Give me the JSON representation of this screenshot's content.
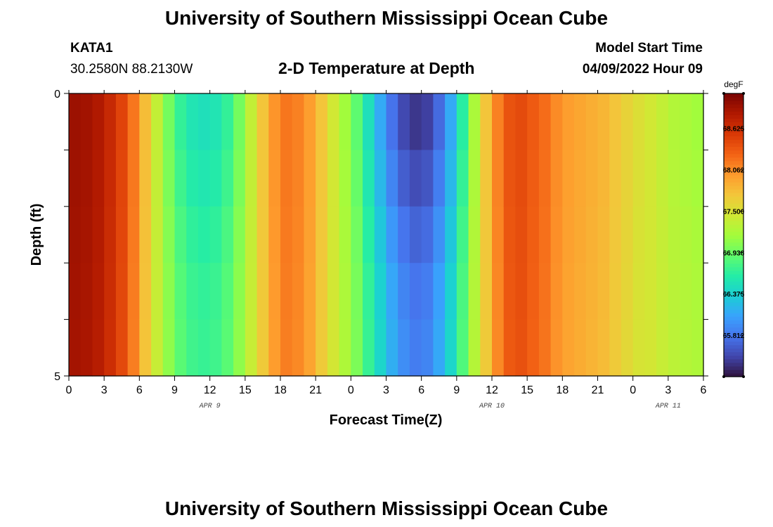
{
  "header": {
    "title": "University of Southern Mississippi Ocean Cube",
    "station_id": "KATA1",
    "coords": "30.2580N  88.2130W",
    "model_label": "Model Start Time",
    "model_time": "04/09/2022 Hour 09",
    "subtitle": "2-D Temperature at Depth"
  },
  "footer": {
    "title": "University of Southern Mississippi Ocean Cube"
  },
  "chart_data": {
    "type": "heatmap",
    "title": "2-D Temperature at Depth",
    "xlabel": "Forecast Time(Z)",
    "ylabel": "Depth (ft)",
    "x_tick_labels": [
      "0",
      "3",
      "6",
      "9",
      "12",
      "15",
      "18",
      "21",
      "0",
      "3",
      "6",
      "9",
      "12",
      "15",
      "18",
      "21",
      "0",
      "3",
      "6"
    ],
    "date_labels": [
      {
        "label": "APR 9",
        "at_hour": 12
      },
      {
        "label": "APR 10",
        "at_hour": 36
      },
      {
        "label": "APR 11",
        "at_hour": 51
      }
    ],
    "y_tick_labels": [
      "0",
      "5"
    ],
    "xlim": [
      0,
      54
    ],
    "ylim": [
      0,
      5
    ],
    "colorbar": {
      "unit": "degF",
      "tick_labels": [
        "68.625",
        "68.062",
        "67.500",
        "66.938",
        "66.375",
        "65.812"
      ],
      "range": [
        65.25,
        69.1
      ],
      "colors": [
        "#30123b",
        "#4145ab",
        "#4675ed",
        "#39a2fc",
        "#1bcfd4",
        "#24eca6",
        "#61fc6c",
        "#a4fc3b",
        "#d1e834",
        "#f3c63a",
        "#fe9b2d",
        "#f36315",
        "#d93806",
        "#b11901",
        "#7a0402"
      ]
    },
    "series": [
      {
        "name": "temperature",
        "time_hours": [
          0,
          1,
          2,
          3,
          4,
          5,
          6,
          7,
          8,
          9,
          10,
          11,
          12,
          13,
          14,
          15,
          16,
          17,
          18,
          19,
          20,
          21,
          22,
          23,
          24,
          25,
          26,
          27,
          28,
          29,
          30,
          31,
          32,
          33,
          34,
          35,
          36,
          37,
          38,
          39,
          40,
          41,
          42,
          43,
          44,
          45,
          46,
          47,
          48,
          49,
          50,
          51,
          52,
          53,
          54
        ],
        "surface_values": [
          68.95,
          68.92,
          68.85,
          68.7,
          68.5,
          68.2,
          67.8,
          67.35,
          66.95,
          66.65,
          66.5,
          66.45,
          66.5,
          66.65,
          66.95,
          67.35,
          67.75,
          68.05,
          68.2,
          68.15,
          68.0,
          67.75,
          67.45,
          67.15,
          66.85,
          66.45,
          66.05,
          65.7,
          65.45,
          65.35,
          65.4,
          65.65,
          66.05,
          66.6,
          67.2,
          67.75,
          68.15,
          68.4,
          68.45,
          68.35,
          68.25,
          68.1,
          68.0,
          67.95,
          67.9,
          67.85,
          67.75,
          67.65,
          67.55,
          67.45,
          67.35,
          67.25,
          67.2,
          67.15,
          67.1
        ]
      },
      {
        "name": "bottom_offset_by_depth_ft",
        "depth_ft": [
          0,
          1,
          2,
          3,
          4,
          5
        ],
        "offset_warm": [
          0,
          -0.02,
          -0.03,
          -0.04,
          -0.05,
          -0.06
        ],
        "offset_cold": [
          0,
          0.1,
          0.22,
          0.35,
          0.45,
          0.5
        ]
      }
    ]
  }
}
